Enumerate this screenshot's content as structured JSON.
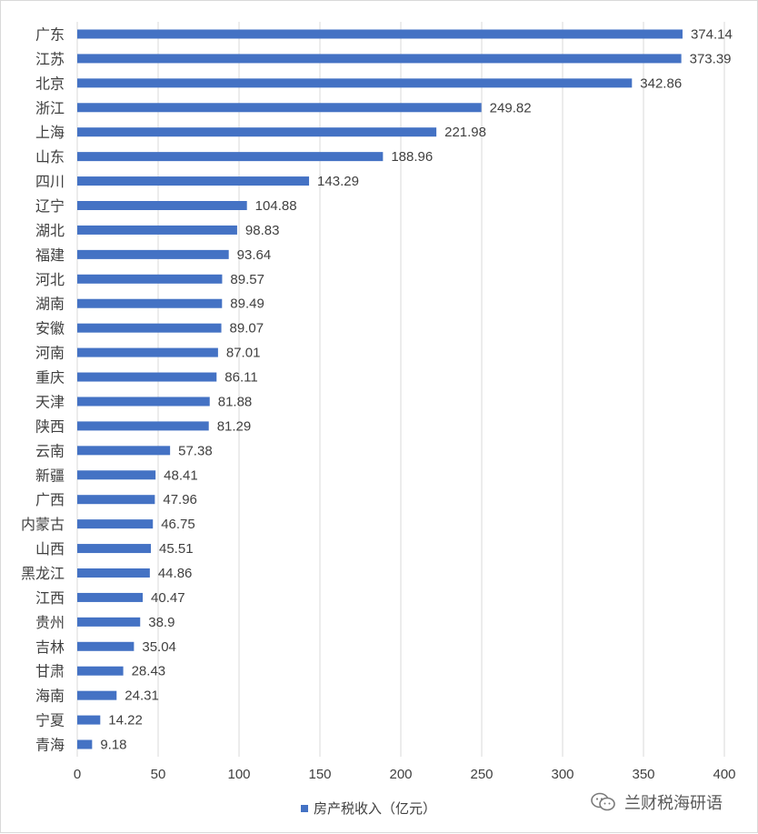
{
  "chart_data": {
    "type": "bar",
    "orientation": "horizontal",
    "categories": [
      "广东",
      "江苏",
      "北京",
      "浙江",
      "上海",
      "山东",
      "四川",
      "辽宁",
      "湖北",
      "福建",
      "河北",
      "湖南",
      "安徽",
      "河南",
      "重庆",
      "天津",
      "陕西",
      "云南",
      "新疆",
      "广西",
      "内蒙古",
      "山西",
      "黑龙江",
      "江西",
      "贵州",
      "吉林",
      "甘肃",
      "海南",
      "宁夏",
      "青海"
    ],
    "series": [
      {
        "name": "房产税收入（亿元）",
        "values": [
          374.14,
          373.39,
          342.86,
          249.82,
          221.98,
          188.96,
          143.29,
          104.88,
          98.83,
          93.64,
          89.57,
          89.49,
          89.07,
          87.01,
          86.11,
          81.88,
          81.29,
          57.38,
          48.41,
          47.96,
          46.75,
          45.51,
          44.86,
          40.47,
          38.9,
          35.04,
          28.43,
          24.31,
          14.22,
          9.18
        ],
        "value_labels": [
          "374.14",
          "373.39",
          "342.86",
          "249.82",
          "221.98",
          "188.96",
          "143.29",
          "104.88",
          "98.83",
          "93.64",
          "89.57",
          "89.49",
          "89.07",
          "87.01",
          "86.11",
          "81.88",
          "81.29",
          "57.38",
          "48.41",
          "47.96",
          "46.75",
          "45.51",
          "44.86",
          "40.47",
          "38.9",
          "35.04",
          "28.43",
          "24.31",
          "14.22",
          "9.18"
        ]
      }
    ],
    "xlim": [
      0,
      400
    ],
    "x_ticks": [
      "0",
      "50",
      "100",
      "150",
      "200",
      "250",
      "300",
      "350",
      "400"
    ],
    "grid": "vertical",
    "legend_position": "bottom",
    "colors": {
      "bar": "#4472c4",
      "grid": "#d9d9d9",
      "text": "#404040"
    }
  },
  "legend": {
    "label": "房产税收入（亿元）"
  },
  "watermark": {
    "text": "兰财税海研语",
    "icon": "wechat-icon"
  }
}
